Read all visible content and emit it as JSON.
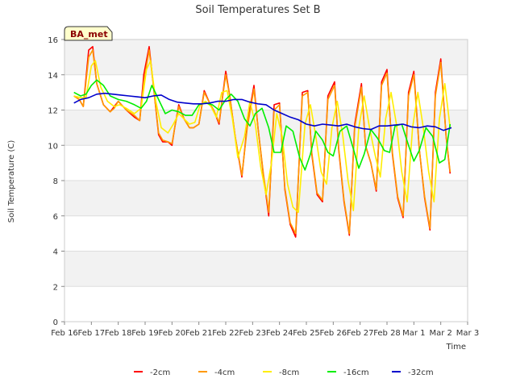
{
  "chart_data": {
    "type": "line",
    "title": "Soil Temperatures Set B",
    "xlabel": "Time",
    "ylabel": "Soil Temperature (C)",
    "annotation": "BA_met",
    "ylim": [
      0,
      16
    ],
    "xlim": [
      0,
      15
    ],
    "yticks": [
      0,
      2,
      4,
      6,
      8,
      10,
      12,
      14,
      16
    ],
    "xticks": [
      {
        "pos": 0,
        "label": "Feb 16"
      },
      {
        "pos": 1,
        "label": "Feb 17"
      },
      {
        "pos": 2,
        "label": "Feb 18"
      },
      {
        "pos": 3,
        "label": "Feb 19"
      },
      {
        "pos": 4,
        "label": "Feb 20"
      },
      {
        "pos": 5,
        "label": "Feb 21"
      },
      {
        "pos": 6,
        "label": "Feb 22"
      },
      {
        "pos": 7,
        "label": "Feb 23"
      },
      {
        "pos": 8,
        "label": "Feb 24"
      },
      {
        "pos": 9,
        "label": "Feb 25"
      },
      {
        "pos": 10,
        "label": "Feb 26"
      },
      {
        "pos": 11,
        "label": "Feb 27"
      },
      {
        "pos": 12,
        "label": "Feb 28"
      },
      {
        "pos": 13,
        "label": "Mar 1"
      },
      {
        "pos": 14,
        "label": "Mar 2"
      },
      {
        "pos": 15,
        "label": "Mar 3"
      }
    ],
    "grid": true,
    "legend_position": "bottom",
    "series": [
      {
        "name": "-2cm",
        "color": "#ff0000",
        "x": [
          0.35,
          0.55,
          0.7,
          0.9,
          1.05,
          1.2,
          1.45,
          1.7,
          1.85,
          2.0,
          2.3,
          2.6,
          2.8,
          2.95,
          3.15,
          3.3,
          3.5,
          3.65,
          3.85,
          4.0,
          4.1,
          4.25,
          4.45,
          4.65,
          4.8,
          5.0,
          5.2,
          5.4,
          5.55,
          5.75,
          6.0,
          6.15,
          6.35,
          6.6,
          6.8,
          7.05,
          7.2,
          7.4,
          7.6,
          7.8,
          8.0,
          8.2,
          8.4,
          8.6,
          8.85,
          9.05,
          9.2,
          9.4,
          9.6,
          9.8,
          10.05,
          10.2,
          10.4,
          10.6,
          10.8,
          11.05,
          11.2,
          11.4,
          11.6,
          11.8,
          12.0,
          12.2,
          12.4,
          12.6,
          12.8,
          13.0,
          13.2,
          13.4,
          13.6,
          13.8,
          14.0,
          14.2,
          14.35
        ],
        "y": [
          12.8,
          12.6,
          12.2,
          15.4,
          15.6,
          13.5,
          12.3,
          11.9,
          12.2,
          12.5,
          12.0,
          11.6,
          11.4,
          14.0,
          15.6,
          13.5,
          10.6,
          10.2,
          10.2,
          10.0,
          11.0,
          12.3,
          11.5,
          11.0,
          11.0,
          11.2,
          13.1,
          12.4,
          12.0,
          11.2,
          14.2,
          12.8,
          10.5,
          8.2,
          11.2,
          13.4,
          11.0,
          8.3,
          6.0,
          12.3,
          12.4,
          7.5,
          5.5,
          4.8,
          13.0,
          13.1,
          9.5,
          7.2,
          6.8,
          12.8,
          13.6,
          9.8,
          6.8,
          4.9,
          11.2,
          13.5,
          10.0,
          9.0,
          7.4,
          13.6,
          14.3,
          9.5,
          7.0,
          5.9,
          13.0,
          14.2,
          9.8,
          7.0,
          5.2,
          13.0,
          14.9,
          10.5,
          8.4
        ]
      },
      {
        "name": "-4cm",
        "color": "#ff9900",
        "x": [
          0.35,
          0.55,
          0.7,
          0.9,
          1.05,
          1.2,
          1.45,
          1.7,
          1.85,
          2.0,
          2.3,
          2.6,
          2.8,
          2.95,
          3.15,
          3.3,
          3.5,
          3.65,
          3.85,
          4.0,
          4.1,
          4.25,
          4.45,
          4.65,
          4.8,
          5.0,
          5.2,
          5.4,
          5.55,
          5.75,
          6.0,
          6.15,
          6.35,
          6.6,
          6.8,
          7.05,
          7.2,
          7.4,
          7.6,
          7.8,
          8.0,
          8.2,
          8.4,
          8.6,
          8.85,
          9.05,
          9.2,
          9.4,
          9.6,
          9.8,
          10.05,
          10.2,
          10.4,
          10.6,
          10.8,
          11.05,
          11.2,
          11.4,
          11.6,
          11.8,
          12.0,
          12.2,
          12.4,
          12.6,
          12.8,
          13.0,
          13.2,
          13.4,
          13.6,
          13.8,
          14.0,
          14.2,
          14.35
        ],
        "y": [
          12.8,
          12.6,
          12.2,
          15.0,
          15.4,
          13.5,
          12.3,
          11.9,
          12.1,
          12.5,
          12.0,
          11.7,
          11.4,
          13.6,
          15.4,
          13.5,
          10.7,
          10.3,
          10.2,
          10.1,
          11.0,
          12.2,
          11.5,
          11.0,
          11.0,
          11.2,
          13.0,
          12.4,
          12.0,
          11.3,
          14.0,
          12.8,
          10.5,
          8.3,
          11.0,
          13.2,
          11.0,
          8.4,
          6.2,
          12.0,
          12.3,
          7.6,
          5.6,
          5.0,
          12.8,
          13.0,
          9.6,
          7.3,
          6.9,
          12.6,
          13.4,
          9.9,
          6.9,
          5.0,
          11.0,
          13.3,
          10.0,
          9.0,
          7.5,
          13.4,
          14.1,
          9.6,
          7.1,
          6.0,
          12.8,
          14.0,
          9.8,
          7.1,
          5.3,
          12.8,
          14.7,
          10.5,
          8.5
        ]
      },
      {
        "name": "-8cm",
        "color": "#ffee00",
        "x": [
          0.35,
          0.6,
          0.8,
          1.0,
          1.15,
          1.35,
          1.6,
          1.85,
          2.05,
          2.3,
          2.6,
          2.85,
          3.05,
          3.2,
          3.4,
          3.6,
          3.85,
          4.05,
          4.25,
          4.45,
          4.65,
          4.85,
          5.05,
          5.25,
          5.45,
          5.65,
          5.85,
          6.05,
          6.25,
          6.45,
          6.7,
          6.9,
          7.1,
          7.3,
          7.5,
          7.7,
          7.9,
          8.1,
          8.3,
          8.5,
          8.7,
          8.95,
          9.15,
          9.35,
          9.55,
          9.75,
          9.95,
          10.15,
          10.35,
          10.55,
          10.75,
          10.95,
          11.15,
          11.35,
          11.55,
          11.75,
          11.95,
          12.15,
          12.35,
          12.55,
          12.75,
          12.95,
          13.15,
          13.35,
          13.55,
          13.75,
          13.95,
          14.15,
          14.35
        ],
        "y": [
          12.8,
          12.7,
          12.7,
          14.5,
          14.8,
          13.3,
          12.5,
          12.2,
          12.3,
          12.1,
          11.8,
          12.1,
          14.3,
          14.8,
          12.5,
          11.0,
          10.7,
          11.2,
          11.8,
          11.5,
          11.2,
          11.3,
          12.3,
          12.5,
          12.2,
          11.6,
          13.0,
          13.1,
          11.5,
          9.3,
          10.5,
          12.5,
          11.2,
          8.8,
          7.2,
          9.0,
          11.8,
          10.5,
          7.8,
          6.5,
          6.2,
          11.2,
          12.3,
          10.5,
          8.5,
          7.8,
          11.0,
          12.5,
          10.6,
          8.0,
          6.3,
          11.0,
          12.8,
          11.0,
          9.5,
          8.2,
          11.5,
          13.0,
          11.2,
          8.5,
          6.8,
          11.0,
          13.0,
          11.0,
          8.5,
          6.8,
          11.5,
          13.5,
          11.0
        ]
      },
      {
        "name": "-16cm",
        "color": "#00ee00",
        "x": [
          0.35,
          0.6,
          0.8,
          1.0,
          1.2,
          1.45,
          1.7,
          2.0,
          2.3,
          2.6,
          2.85,
          3.05,
          3.25,
          3.5,
          3.75,
          4.0,
          4.25,
          4.5,
          4.75,
          5.0,
          5.25,
          5.5,
          5.75,
          6.0,
          6.2,
          6.45,
          6.7,
          6.9,
          7.1,
          7.35,
          7.6,
          7.8,
          8.05,
          8.25,
          8.5,
          8.75,
          8.95,
          9.15,
          9.35,
          9.6,
          9.8,
          10.0,
          10.25,
          10.5,
          10.75,
          10.95,
          11.15,
          11.4,
          11.65,
          11.9,
          12.1,
          12.3,
          12.55,
          12.8,
          13.0,
          13.2,
          13.45,
          13.7,
          13.95,
          14.15,
          14.35
        ],
        "y": [
          13.0,
          12.8,
          12.9,
          13.4,
          13.7,
          13.4,
          12.8,
          12.6,
          12.5,
          12.3,
          12.1,
          12.5,
          13.4,
          12.6,
          11.8,
          12.0,
          11.9,
          11.7,
          11.7,
          12.3,
          12.4,
          12.3,
          12.0,
          12.6,
          12.9,
          12.5,
          11.5,
          11.1,
          11.8,
          12.1,
          11.0,
          9.6,
          9.6,
          11.1,
          10.8,
          9.3,
          8.6,
          9.5,
          10.8,
          10.3,
          9.6,
          9.4,
          10.8,
          11.1,
          9.8,
          8.7,
          9.5,
          10.9,
          10.4,
          9.7,
          9.6,
          11.1,
          11.2,
          10.0,
          9.1,
          9.7,
          11.0,
          10.5,
          9.0,
          9.2,
          11.2
        ]
      },
      {
        "name": "-32cm",
        "color": "#0000cc",
        "x": [
          0.35,
          0.6,
          0.9,
          1.2,
          1.5,
          1.8,
          2.1,
          2.4,
          2.7,
          3.0,
          3.3,
          3.6,
          3.9,
          4.2,
          4.5,
          4.8,
          5.1,
          5.4,
          5.7,
          6.0,
          6.3,
          6.6,
          6.9,
          7.2,
          7.5,
          7.8,
          8.1,
          8.4,
          8.7,
          9.0,
          9.3,
          9.6,
          9.9,
          10.2,
          10.5,
          10.8,
          11.1,
          11.4,
          11.7,
          12.0,
          12.3,
          12.6,
          12.9,
          13.2,
          13.5,
          13.8,
          14.1,
          14.4
        ],
        "y": [
          12.4,
          12.6,
          12.7,
          12.9,
          12.95,
          12.9,
          12.85,
          12.8,
          12.75,
          12.7,
          12.8,
          12.85,
          12.6,
          12.45,
          12.4,
          12.35,
          12.35,
          12.4,
          12.5,
          12.5,
          12.6,
          12.6,
          12.45,
          12.35,
          12.3,
          12.0,
          11.8,
          11.6,
          11.45,
          11.2,
          11.1,
          11.2,
          11.15,
          11.1,
          11.2,
          11.05,
          10.95,
          10.9,
          11.1,
          11.1,
          11.15,
          11.2,
          11.05,
          11.0,
          11.1,
          11.05,
          10.85,
          11.0
        ]
      }
    ]
  }
}
